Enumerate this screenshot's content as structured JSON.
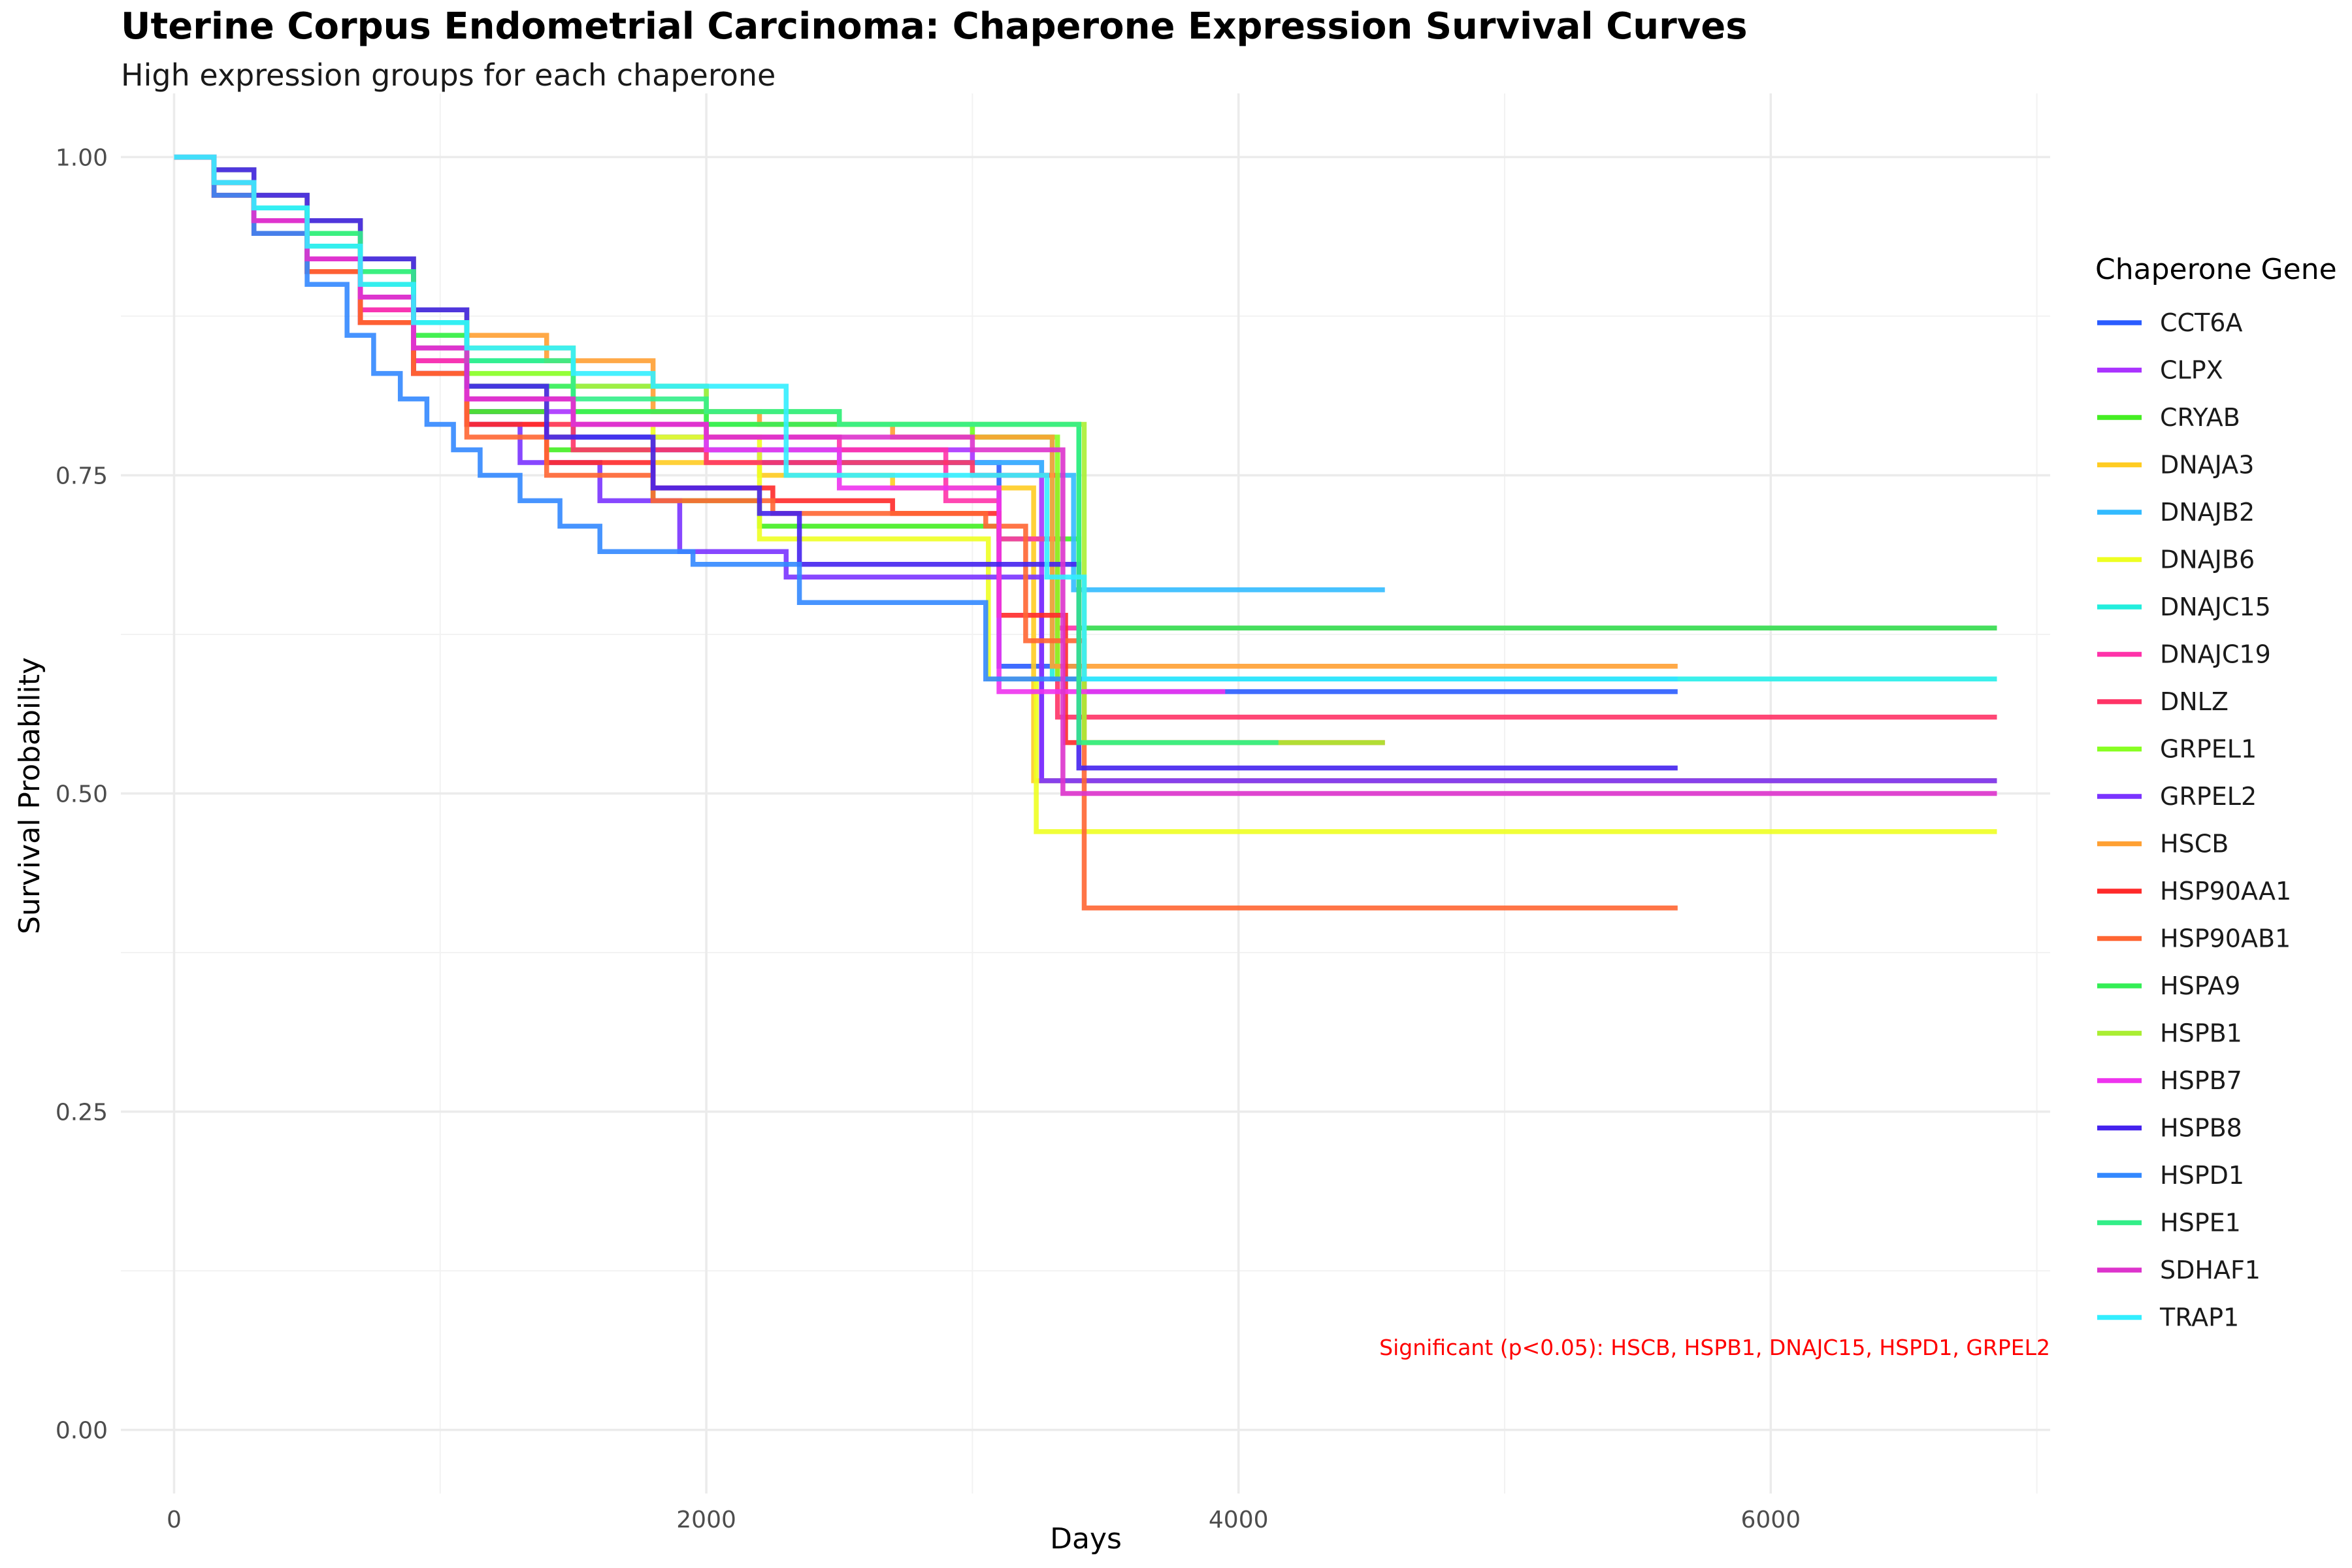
{
  "chart_data": {
    "type": "line",
    "title": "Uterine Corpus Endometrial Carcinoma: Chaperone Expression Survival Curves",
    "subtitle": "High expression groups for each chaperone",
    "xlabel": "Days",
    "ylabel": "Survival Probability",
    "xlim": [
      -200,
      7050
    ],
    "ylim": [
      -0.05,
      1.05
    ],
    "x_ticks": [
      0,
      2000,
      4000,
      6000
    ],
    "x_tick_labels": [
      "0",
      "2000",
      "4000",
      "6000"
    ],
    "y_ticks": [
      0,
      0.25,
      0.5,
      0.75,
      1.0
    ],
    "y_tick_labels": [
      "0.00",
      "0.25",
      "0.50",
      "0.75",
      "1.00"
    ],
    "grid": true,
    "legend_title": "Chaperone Gene",
    "legend_position": "right",
    "annotation": "Significant (p<0.05): HSCB, HSPB1, DNAJC15, HSPD1, GRPEL2",
    "series": [
      {
        "name": "CCT6A",
        "color": "#2a5cff",
        "x": [
          0,
          150,
          300,
          500,
          700,
          900,
          1100,
          1400,
          1800,
          2200,
          2700,
          3100,
          3420,
          5650
        ],
        "y": [
          1,
          0.98,
          0.95,
          0.91,
          0.87,
          0.83,
          0.8,
          0.78,
          0.77,
          0.76,
          0.76,
          0.6,
          0.58,
          0.58
        ]
      },
      {
        "name": "CLPX",
        "color": "#aa33ff",
        "x": [
          0,
          150,
          300,
          500,
          700,
          900,
          1100,
          1500,
          2000,
          2500,
          3000,
          3260,
          3420,
          6850
        ],
        "y": [
          1,
          0.98,
          0.95,
          0.92,
          0.88,
          0.84,
          0.8,
          0.78,
          0.77,
          0.77,
          0.76,
          0.51,
          0.51,
          0.51
        ]
      },
      {
        "name": "CRYAB",
        "color": "#44ee22",
        "x": [
          0,
          150,
          300,
          500,
          700,
          900,
          1100,
          1400,
          1800,
          2200,
          2700,
          3100,
          3400,
          6850
        ],
        "y": [
          1,
          0.98,
          0.96,
          0.93,
          0.89,
          0.85,
          0.8,
          0.77,
          0.73,
          0.71,
          0.71,
          0.7,
          0.63,
          0.63
        ]
      },
      {
        "name": "DNAJA3",
        "color": "#ffcc22",
        "x": [
          0,
          150,
          300,
          500,
          700,
          900,
          1100,
          1400,
          1800,
          2200,
          2700,
          3230,
          6850
        ],
        "y": [
          1,
          0.98,
          0.96,
          0.93,
          0.9,
          0.86,
          0.81,
          0.78,
          0.76,
          0.75,
          0.74,
          0.51,
          0.51
        ]
      },
      {
        "name": "DNAJB2",
        "color": "#33bbff",
        "x": [
          0,
          150,
          300,
          500,
          700,
          900,
          1100,
          1500,
          2000,
          2500,
          3000,
          3260,
          3380,
          4550
        ],
        "y": [
          1,
          0.98,
          0.96,
          0.93,
          0.9,
          0.86,
          0.81,
          0.78,
          0.77,
          0.76,
          0.76,
          0.75,
          0.66,
          0.66
        ]
      },
      {
        "name": "DNAJB6",
        "color": "#eeff22",
        "x": [
          0,
          150,
          300,
          500,
          700,
          900,
          1100,
          1400,
          1800,
          2200,
          2700,
          3060,
          3240,
          6850
        ],
        "y": [
          1,
          0.98,
          0.96,
          0.93,
          0.9,
          0.86,
          0.82,
          0.79,
          0.78,
          0.7,
          0.7,
          0.59,
          0.47,
          0.47
        ]
      },
      {
        "name": "DNAJC15",
        "color": "#22eedd",
        "x": [
          0,
          150,
          300,
          500,
          700,
          900,
          1100,
          1500,
          2000,
          2500,
          3000,
          3300,
          6850
        ],
        "y": [
          1,
          0.98,
          0.96,
          0.94,
          0.91,
          0.87,
          0.84,
          0.82,
          0.8,
          0.79,
          0.78,
          0.59,
          0.59
        ]
      },
      {
        "name": "DNAJC19",
        "color": "#ff33aa",
        "x": [
          0,
          150,
          300,
          500,
          700,
          900,
          1100,
          1500,
          2000,
          2500,
          2900,
          3100,
          3320,
          6850
        ],
        "y": [
          1,
          0.98,
          0.95,
          0.92,
          0.88,
          0.84,
          0.81,
          0.79,
          0.78,
          0.77,
          0.73,
          0.7,
          0.63,
          0.63
        ]
      },
      {
        "name": "DNLZ",
        "color": "#ff3366",
        "x": [
          0,
          150,
          300,
          500,
          700,
          900,
          1100,
          1500,
          2000,
          2500,
          3000,
          3320,
          6850
        ],
        "y": [
          1,
          0.97,
          0.94,
          0.91,
          0.87,
          0.83,
          0.79,
          0.77,
          0.76,
          0.76,
          0.75,
          0.56,
          0.56
        ]
      },
      {
        "name": "GRPEL1",
        "color": "#88ff22",
        "x": [
          0,
          150,
          300,
          500,
          700,
          900,
          1100,
          1500,
          2000,
          2500,
          3000,
          3320,
          6850
        ],
        "y": [
          1,
          0.98,
          0.96,
          0.94,
          0.91,
          0.87,
          0.83,
          0.8,
          0.79,
          0.79,
          0.78,
          0.59,
          0.59
        ]
      },
      {
        "name": "GRPEL2",
        "color": "#7a33ff",
        "x": [
          0,
          150,
          300,
          500,
          700,
          900,
          1100,
          1300,
          1600,
          1900,
          2300,
          2700,
          3000,
          3260,
          3420,
          6850
        ],
        "y": [
          1,
          0.98,
          0.95,
          0.91,
          0.87,
          0.83,
          0.79,
          0.76,
          0.73,
          0.69,
          0.67,
          0.67,
          0.67,
          0.51,
          0.51,
          0.51
        ]
      },
      {
        "name": "HSCB",
        "color": "#ffa033",
        "x": [
          0,
          150,
          300,
          500,
          700,
          900,
          1100,
          1400,
          1800,
          2200,
          2700,
          3000,
          3300,
          5650
        ],
        "y": [
          1,
          0.98,
          0.97,
          0.95,
          0.92,
          0.88,
          0.86,
          0.84,
          0.8,
          0.79,
          0.78,
          0.78,
          0.6,
          0.6
        ]
      },
      {
        "name": "HSP90AA1",
        "color": "#ff2a2a",
        "x": [
          0,
          150,
          300,
          500,
          700,
          900,
          1100,
          1400,
          1800,
          2250,
          2700,
          3100,
          3350,
          4550
        ],
        "y": [
          1,
          0.97,
          0.94,
          0.91,
          0.87,
          0.83,
          0.79,
          0.76,
          0.74,
          0.73,
          0.72,
          0.64,
          0.54,
          0.54
        ]
      },
      {
        "name": "HSP90AB1",
        "color": "#ff6633",
        "x": [
          0,
          150,
          300,
          500,
          700,
          900,
          1100,
          1400,
          1800,
          2250,
          2700,
          3050,
          3200,
          3420,
          5650
        ],
        "y": [
          1,
          0.98,
          0.95,
          0.91,
          0.87,
          0.83,
          0.78,
          0.75,
          0.73,
          0.72,
          0.72,
          0.71,
          0.62,
          0.41,
          0.41
        ]
      },
      {
        "name": "HSPA9",
        "color": "#33ee55",
        "x": [
          0,
          150,
          300,
          500,
          700,
          900,
          1100,
          1500,
          2000,
          2500,
          3000,
          3400,
          6850
        ],
        "y": [
          1,
          0.98,
          0.96,
          0.93,
          0.9,
          0.86,
          0.82,
          0.8,
          0.79,
          0.79,
          0.79,
          0.63,
          0.63
        ]
      },
      {
        "name": "HSPB1",
        "color": "#aaee33",
        "x": [
          0,
          150,
          300,
          500,
          700,
          900,
          1100,
          1500,
          2000,
          2500,
          3000,
          3420,
          4550
        ],
        "y": [
          1,
          0.99,
          0.97,
          0.95,
          0.92,
          0.88,
          0.85,
          0.82,
          0.8,
          0.79,
          0.79,
          0.54,
          0.54
        ]
      },
      {
        "name": "HSPB7",
        "color": "#ee33ee",
        "x": [
          0,
          150,
          300,
          500,
          700,
          900,
          1100,
          1500,
          2000,
          2500,
          3000,
          3100,
          3280,
          3950
        ],
        "y": [
          1,
          0.98,
          0.95,
          0.92,
          0.89,
          0.85,
          0.81,
          0.79,
          0.77,
          0.74,
          0.74,
          0.58,
          0.58,
          0.58
        ]
      },
      {
        "name": "HSPB8",
        "color": "#4422ee",
        "x": [
          0,
          150,
          300,
          500,
          700,
          900,
          1100,
          1400,
          1800,
          2200,
          2350,
          2700,
          3000,
          3400,
          5650
        ],
        "y": [
          1,
          0.99,
          0.97,
          0.95,
          0.92,
          0.88,
          0.82,
          0.78,
          0.74,
          0.72,
          0.68,
          0.68,
          0.68,
          0.52,
          0.52
        ]
      },
      {
        "name": "HSPD1",
        "color": "#3388ff",
        "x": [
          0,
          150,
          300,
          500,
          650,
          750,
          850,
          950,
          1050,
          1150,
          1300,
          1450,
          1600,
          1950,
          2350,
          3050,
          3380,
          5650
        ],
        "y": [
          1,
          0.97,
          0.94,
          0.9,
          0.86,
          0.83,
          0.81,
          0.79,
          0.77,
          0.75,
          0.73,
          0.71,
          0.69,
          0.68,
          0.65,
          0.59,
          0.59,
          0.59
        ]
      },
      {
        "name": "HSPE1",
        "color": "#33ee88",
        "x": [
          0,
          150,
          300,
          500,
          700,
          900,
          1100,
          1500,
          2000,
          2500,
          3000,
          3400,
          4150
        ],
        "y": [
          1,
          0.98,
          0.96,
          0.94,
          0.91,
          0.87,
          0.84,
          0.81,
          0.8,
          0.79,
          0.79,
          0.54,
          0.54
        ]
      },
      {
        "name": "SDHAF1",
        "color": "#dd33cc",
        "x": [
          0,
          150,
          300,
          500,
          700,
          900,
          1100,
          1500,
          2000,
          2500,
          3000,
          3340,
          6850
        ],
        "y": [
          1,
          0.98,
          0.95,
          0.92,
          0.89,
          0.85,
          0.81,
          0.79,
          0.78,
          0.78,
          0.77,
          0.5,
          0.5
        ]
      },
      {
        "name": "TRAP1",
        "color": "#33eeff",
        "x": [
          0,
          150,
          300,
          500,
          700,
          900,
          1100,
          1500,
          1800,
          2300,
          3000,
          3280,
          3420,
          6850
        ],
        "y": [
          1,
          0.98,
          0.96,
          0.93,
          0.9,
          0.87,
          0.85,
          0.83,
          0.82,
          0.75,
          0.75,
          0.67,
          0.59,
          0.59
        ]
      }
    ]
  }
}
